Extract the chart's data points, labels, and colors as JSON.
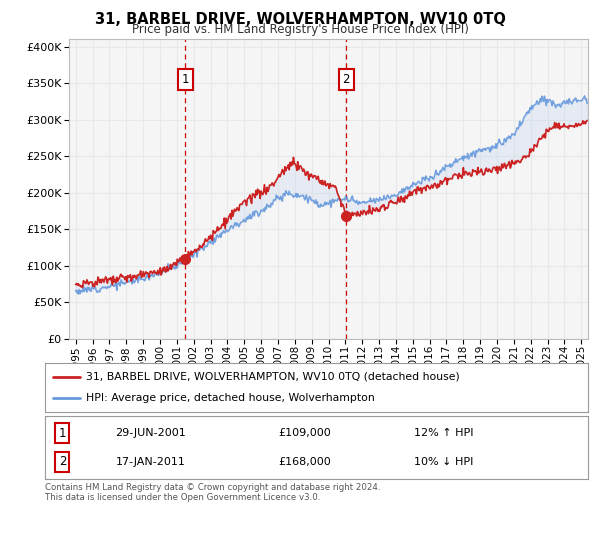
{
  "title": "31, BARBEL DRIVE, WOLVERHAMPTON, WV10 0TQ",
  "subtitle": "Price paid vs. HM Land Registry's House Price Index (HPI)",
  "hpi_label": "HPI: Average price, detached house, Wolverhampton",
  "property_label": "31, BARBEL DRIVE, WOLVERHAMPTON, WV10 0TQ (detached house)",
  "footnote": "Contains HM Land Registry data © Crown copyright and database right 2024.\nThis data is licensed under the Open Government Licence v3.0.",
  "marker1": {
    "date": "29-JUN-2001",
    "price": 109000,
    "hpi_pct": "12% ↑ HPI",
    "label": "1"
  },
  "marker2": {
    "date": "17-JAN-2011",
    "price": 168000,
    "hpi_pct": "10% ↓ HPI",
    "label": "2"
  },
  "marker1_x": 2001.5,
  "marker1_y": 109000,
  "marker2_x": 2011.05,
  "marker2_y": 168000,
  "ylim_min": 0,
  "ylim_max": 410000,
  "xlim_min": 1994.6,
  "xlim_max": 2025.4,
  "property_color": "#cc2222",
  "hpi_color": "#6699dd",
  "fill_color": "#c8d8f0",
  "vline_color": "#cc0000",
  "grid_color": "#e8e8e8",
  "plot_bg_color": "#f5f5f5",
  "yticks": [
    0,
    50000,
    100000,
    150000,
    200000,
    250000,
    300000,
    350000,
    400000
  ],
  "xticks": [
    1995,
    1996,
    1997,
    1998,
    1999,
    2000,
    2001,
    2002,
    2003,
    2004,
    2005,
    2006,
    2007,
    2008,
    2009,
    2010,
    2011,
    2012,
    2013,
    2014,
    2015,
    2016,
    2017,
    2018,
    2019,
    2020,
    2021,
    2022,
    2023,
    2024,
    2025
  ]
}
